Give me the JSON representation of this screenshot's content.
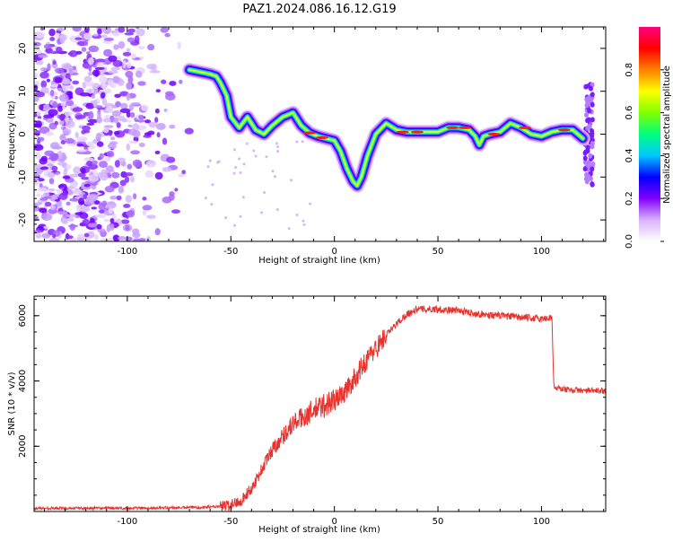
{
  "title": "PAZ1.2024.086.16.12.G19",
  "chart_data": [
    {
      "type": "heatmap",
      "xlabel": "Height of straight line (km)",
      "ylabel": "Frequency (Hz)",
      "xlim": [
        -145,
        131
      ],
      "ylim": [
        -25,
        25
      ],
      "x_ticks": [
        -100,
        -50,
        0,
        50,
        100
      ],
      "y_ticks": [
        -20,
        -10,
        0,
        10,
        20
      ],
      "colorbar": {
        "label": "Normalized spectral amplitude",
        "range": [
          0,
          1
        ],
        "ticks": [
          0.0,
          0.2,
          0.4,
          0.6,
          0.8
        ],
        "colors": [
          "#ffffff",
          "#d9b3ff",
          "#8000ff",
          "#0000ff",
          "#00c8ff",
          "#00ff80",
          "#80ff00",
          "#ffff00",
          "#ff8000",
          "#ff0000",
          "#ff0080"
        ]
      },
      "ridge": {
        "x": [
          -70,
          -65,
          -60,
          -57,
          -55,
          -52,
          -50,
          -46,
          -42,
          -38,
          -34,
          -30,
          -25,
          -20,
          -16,
          -12,
          -8,
          -4,
          0,
          3,
          6,
          9,
          11,
          13,
          16,
          20,
          25,
          30,
          35,
          40,
          45,
          50,
          55,
          60,
          65,
          68,
          70,
          72,
          75,
          80,
          85,
          90,
          95,
          100,
          105,
          110,
          115,
          120
        ],
        "y": [
          15,
          14.5,
          14,
          13.5,
          12,
          9,
          4,
          1.5,
          4,
          1,
          0,
          2,
          4,
          5,
          2,
          0.3,
          -0.5,
          -1,
          -1.5,
          -4,
          -8,
          -11,
          -12,
          -10,
          -5,
          0,
          2.5,
          1,
          0.5,
          0.5,
          0.5,
          0.5,
          1.5,
          1.5,
          1,
          -0.5,
          -2.5,
          -0.5,
          0,
          0.5,
          2.5,
          1.5,
          0,
          -0.5,
          0.5,
          1,
          1,
          -1
        ]
      }
    },
    {
      "type": "line",
      "xlabel": "Height of straight line (km)",
      "ylabel": "SNR (10 * v/v)",
      "xlim": [
        -145,
        131
      ],
      "ylim": [
        0,
        6600
      ],
      "x_ticks": [
        -100,
        -50,
        0,
        50,
        100
      ],
      "y_ticks": [
        2000,
        4000,
        6000
      ],
      "color": "#e8322d",
      "points": {
        "x": [
          -145,
          -100,
          -70,
          -55,
          -50,
          -45,
          -40,
          -35,
          -30,
          -25,
          -20,
          -15,
          -10,
          -5,
          0,
          5,
          10,
          15,
          20,
          25,
          30,
          35,
          40,
          50,
          60,
          70,
          80,
          90,
          100,
          105,
          106,
          110,
          120,
          131
        ],
        "y": [
          100,
          100,
          120,
          150,
          200,
          350,
          700,
          1300,
          1900,
          2300,
          2700,
          2900,
          3100,
          3250,
          3400,
          3650,
          4100,
          4600,
          5000,
          5400,
          5750,
          6050,
          6200,
          6200,
          6150,
          6050,
          6000,
          5950,
          5900,
          5950,
          3800,
          3750,
          3700,
          3700
        ]
      }
    }
  ]
}
